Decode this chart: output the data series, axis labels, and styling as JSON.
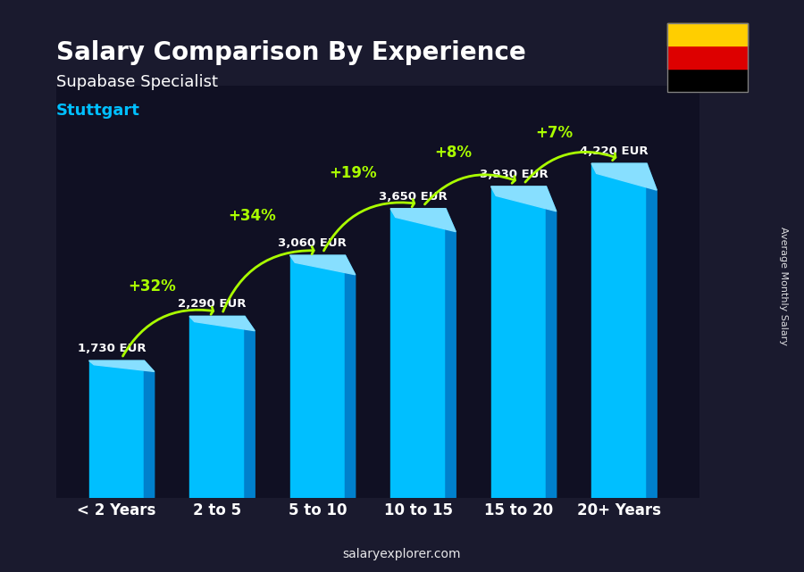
{
  "title": "Salary Comparison By Experience",
  "subtitle": "Supabase Specialist",
  "city": "Stuttgart",
  "categories": [
    "< 2 Years",
    "2 to 5",
    "5 to 10",
    "10 to 15",
    "15 to 20",
    "20+ Years"
  ],
  "values": [
    1730,
    2290,
    3060,
    3650,
    3930,
    4220
  ],
  "labels": [
    "1,730 EUR",
    "2,290 EUR",
    "3,060 EUR",
    "3,650 EUR",
    "3,930 EUR",
    "4,220 EUR"
  ],
  "pct_changes": [
    "+32%",
    "+34%",
    "+19%",
    "+8%",
    "+7%"
  ],
  "bar_color_main": "#00BFFF",
  "bar_color_side": "#0080CC",
  "bar_color_top": "#87DFFF",
  "bg_color": "#1a1a2e",
  "title_color": "#FFFFFF",
  "subtitle_color": "#FFFFFF",
  "city_color": "#00BFFF",
  "label_color": "#FFFFFF",
  "pct_color": "#AAFF00",
  "xlabel_color": "#FFFFFF",
  "ylabel_text": "Average Monthly Salary",
  "footer_text": "salaryexplorer.com",
  "ylim": [
    0,
    5200
  ],
  "fig_width": 9.0,
  "fig_height": 6.41
}
